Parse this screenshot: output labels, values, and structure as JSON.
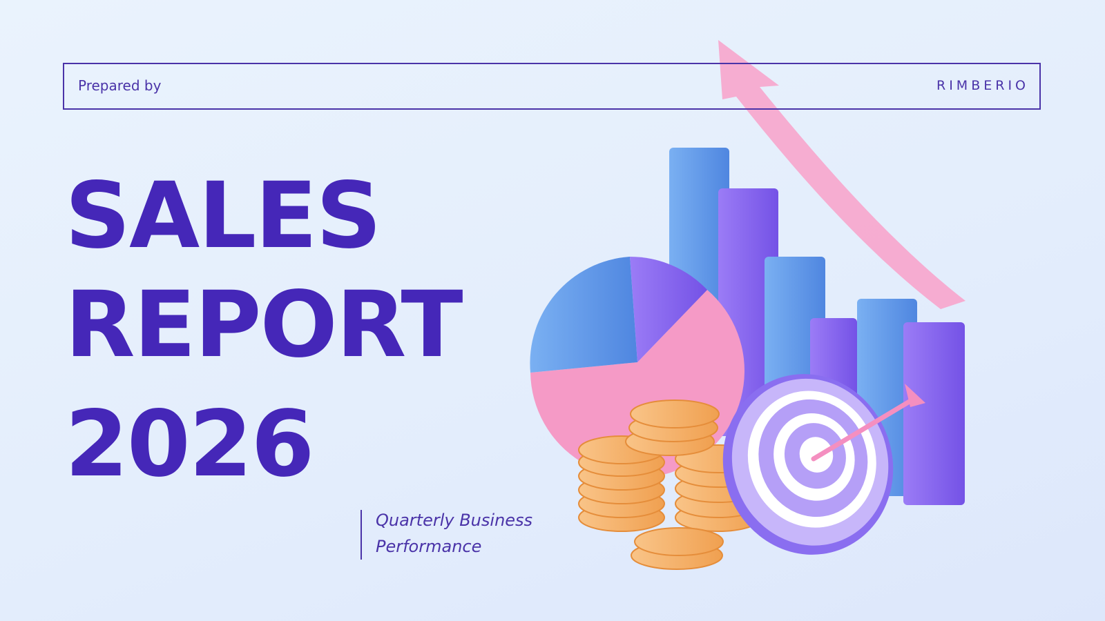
{
  "header": {
    "prepared_by": "Prepared by",
    "brand": "RIMBERIO"
  },
  "title": {
    "lines": [
      "SALES",
      "REPORT",
      "2026"
    ]
  },
  "subtitle": {
    "lines": [
      "Quarterly Business",
      "Performance"
    ]
  }
}
